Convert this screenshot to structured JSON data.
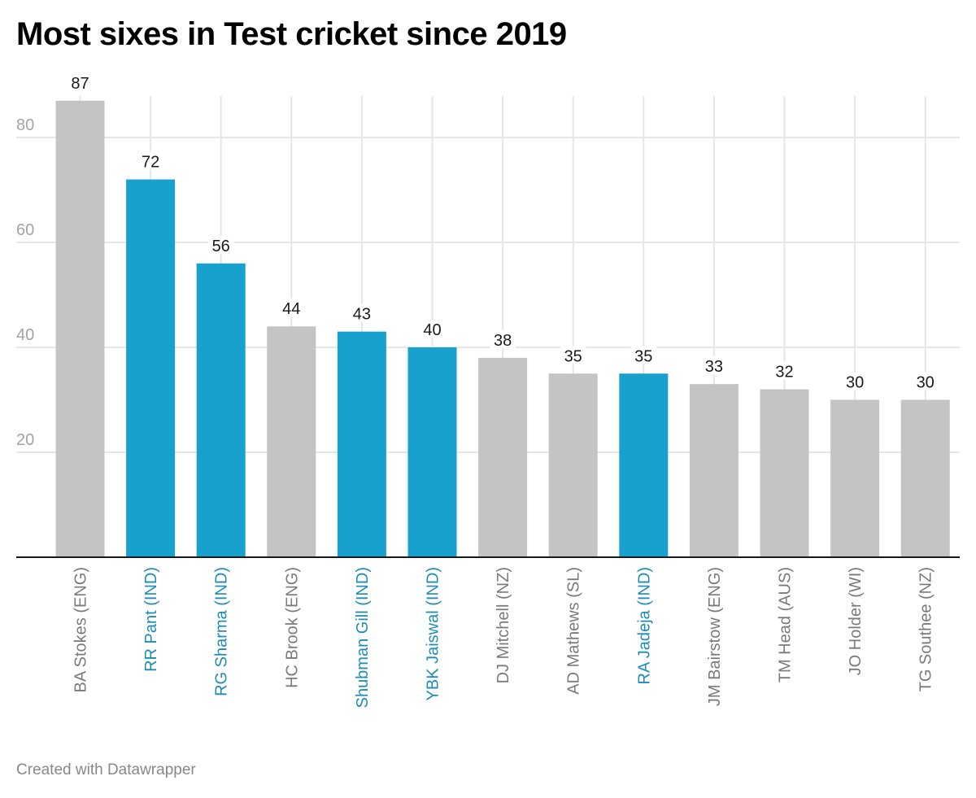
{
  "header": {
    "title": "Most sixes in Test cricket since 2019"
  },
  "footer": {
    "credit": "Created with Datawrapper"
  },
  "colors": {
    "highlight": "#18a1cd",
    "default": "#c4c4c4",
    "highlight_label": "#1d8cb6",
    "default_label": "#7a7a7a",
    "grid": "#e6e6e6",
    "axis": "#1a1a1a",
    "tick_label": "#a3a3a3",
    "value_label": "#1a1a1a"
  },
  "chart_data": {
    "type": "bar",
    "title": "Most sixes in Test cricket since 2019",
    "xlabel": "",
    "ylabel": "",
    "ylim": [
      0,
      87
    ],
    "yticks": [
      20,
      40,
      60,
      80
    ],
    "grid": true,
    "categories": [
      "BA Stokes (ENG)",
      "RR Pant (IND)",
      "RG Sharma (IND)",
      "HC Brook (ENG)",
      "Shubman Gill (IND)",
      "YBK Jaiswal (IND)",
      "DJ Mitchell (NZ)",
      "AD Mathews (SL)",
      "RA Jadeja (IND)",
      "JM Bairstow (ENG)",
      "TM Head (AUS)",
      "JO Holder (WI)",
      "TG Southee (NZ)"
    ],
    "values": [
      87,
      72,
      56,
      44,
      43,
      40,
      38,
      35,
      35,
      33,
      32,
      30,
      30
    ],
    "highlighted": [
      false,
      true,
      true,
      false,
      true,
      true,
      false,
      false,
      true,
      false,
      false,
      false,
      false
    ],
    "highlight_meaning": "India (IND) players"
  }
}
